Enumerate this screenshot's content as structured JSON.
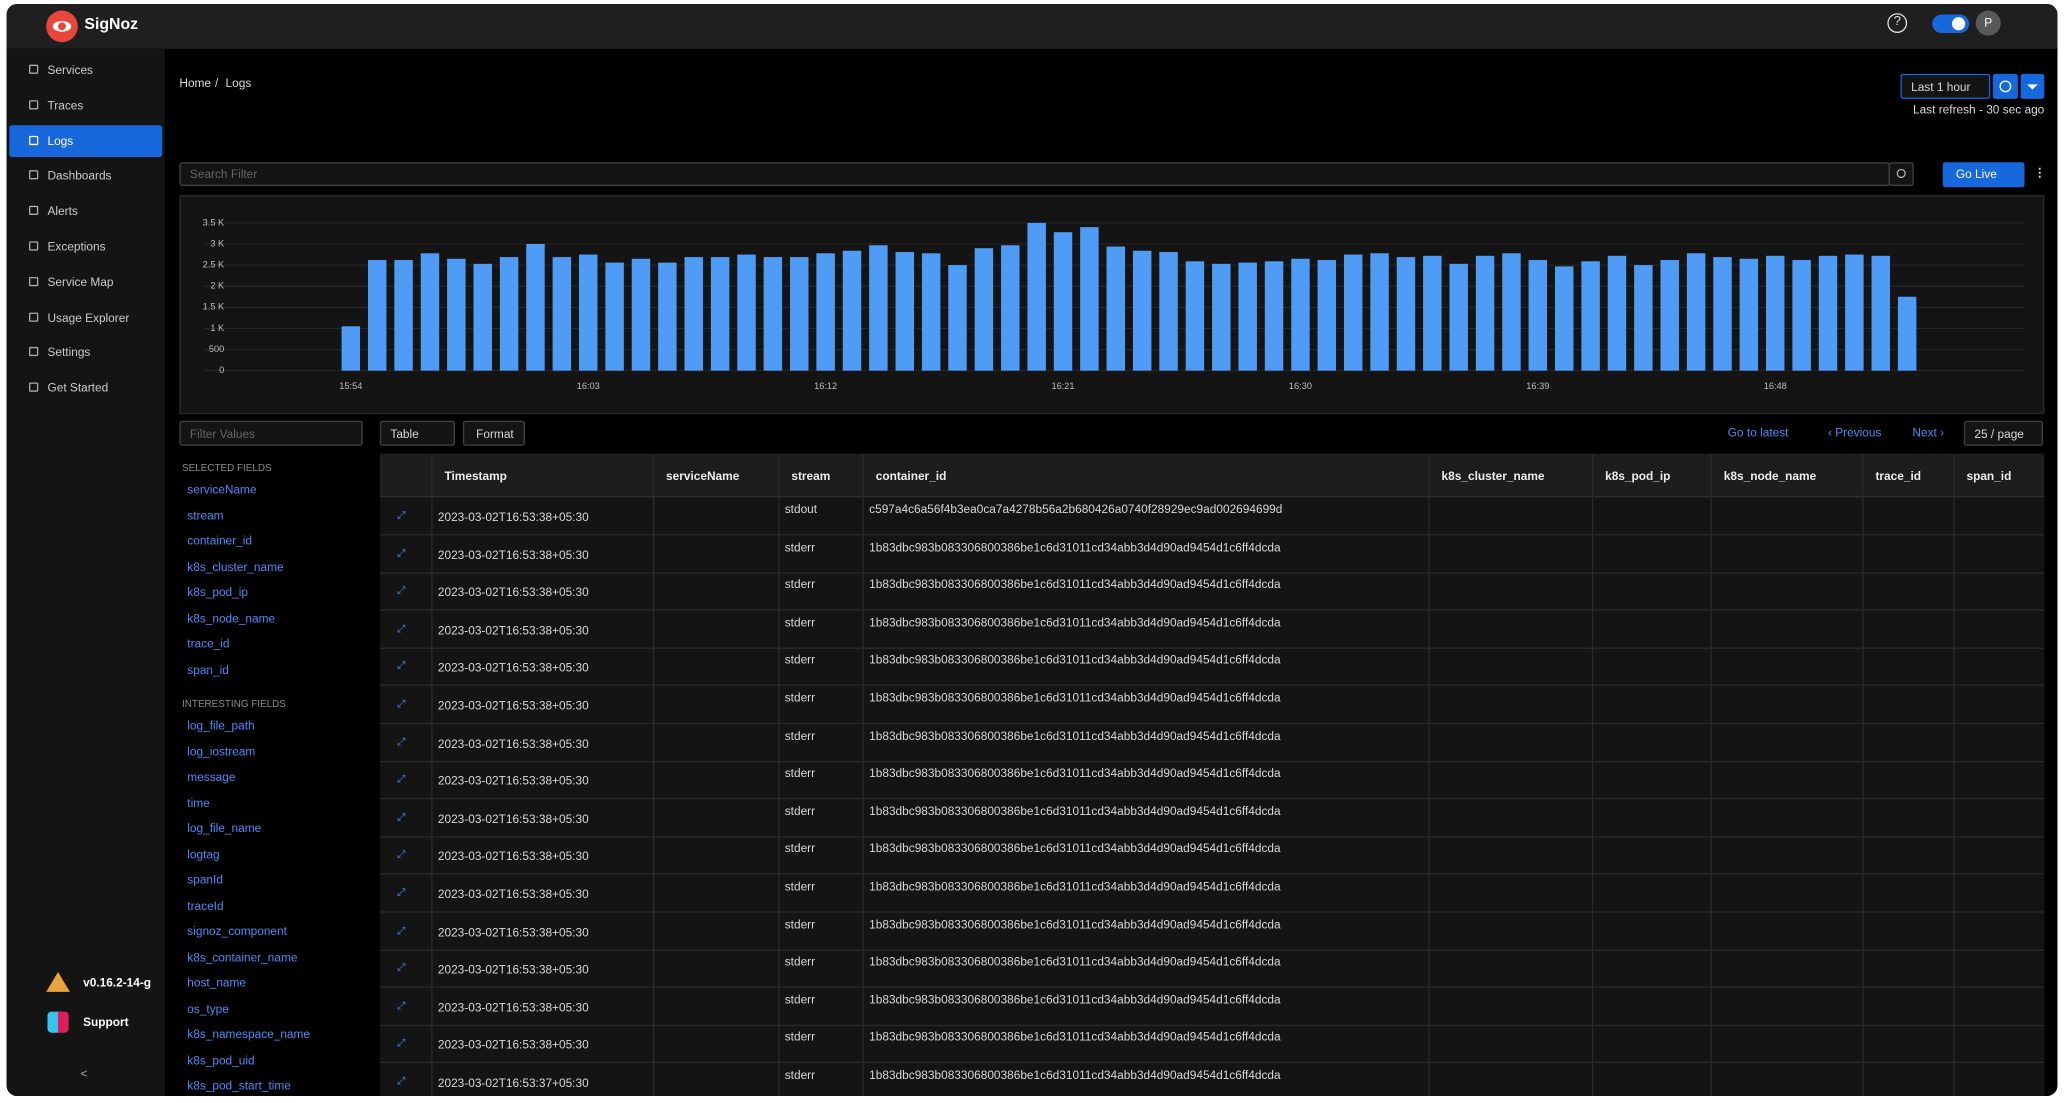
{
  "header": {
    "brand": "SigNoz",
    "avatar": "P"
  },
  "nav": {
    "items": [
      "Services",
      "Traces",
      "Logs",
      "Dashboards",
      "Alerts",
      "Exceptions",
      "Service Map",
      "Usage Explorer",
      "Settings",
      "Get Started"
    ],
    "version": "v0.16.2-14-g",
    "support": "Support"
  },
  "breadcrumb": {
    "items": [
      "Home",
      "Logs"
    ],
    "separator": "/"
  },
  "time": {
    "range": "Last 1 hour",
    "refresh": "Last refresh - 30 sec ago"
  },
  "search": {
    "placeholder": "Search Filter",
    "go_live": "Go Live"
  },
  "histogram": {
    "type": "bar",
    "categories": [
      "15:54",
      null,
      null,
      null,
      null,
      null,
      null,
      null,
      null,
      "16:03",
      null,
      null,
      null,
      null,
      null,
      null,
      null,
      null,
      "16:12",
      null,
      null,
      null,
      null,
      null,
      null,
      null,
      null,
      "16:21",
      null,
      null,
      null,
      null,
      null,
      null,
      null,
      null,
      "16:30",
      null,
      null,
      null,
      null,
      null,
      null,
      null,
      null,
      "16:39",
      null,
      null,
      null,
      null,
      null,
      null,
      null,
      null,
      "16:48",
      null,
      null,
      null,
      null,
      null
    ],
    "values": [
      1050,
      2620,
      2620,
      2780,
      2650,
      2530,
      2690,
      3000,
      2690,
      2750,
      2560,
      2650,
      2560,
      2690,
      2690,
      2750,
      2690,
      2690,
      2780,
      2840,
      2970,
      2810,
      2780,
      2500,
      2900,
      2970,
      3500,
      3280,
      3400,
      2940,
      2840,
      2810,
      2590,
      2530,
      2560,
      2590,
      2650,
      2620,
      2750,
      2780,
      2690,
      2720,
      2530,
      2720,
      2780,
      2620,
      2470,
      2590,
      2720,
      2500,
      2620,
      2780,
      2690,
      2650,
      2720,
      2620,
      2720,
      2750,
      2720,
      1750
    ],
    "color": "#4e9cf5",
    "ylim": [
      0,
      3500
    ],
    "yticks": [
      0,
      500,
      {
        "value": 1000,
        "label": "1 K"
      },
      {
        "value": 1500,
        "label": "1.5 K"
      },
      {
        "value": 2000,
        "label": "2 K"
      },
      {
        "value": 2500,
        "label": "2.5 K"
      },
      {
        "value": 3000,
        "label": "3 K"
      },
      {
        "value": 3500,
        "label": "3.5 K"
      }
    ],
    "grid": true
  },
  "filter": {
    "placeholder": "Filter Values",
    "selected_title": "SELECTED FIELDS",
    "selected": [
      "serviceName",
      "stream",
      "container_id",
      "k8s_cluster_name",
      "k8s_pod_ip",
      "k8s_node_name",
      "trace_id",
      "span_id"
    ],
    "interesting_title": "INTERESTING FIELDS",
    "interesting": [
      "log_file_path",
      "log_iostream",
      "message",
      "time",
      "log_file_name",
      "logtag",
      "spanId",
      "traceId",
      "signoz_component",
      "k8s_container_name",
      "host_name",
      "os_type",
      "k8s_namespace_name",
      "k8s_pod_uid",
      "k8s_pod_start_time"
    ]
  },
  "toolbar": {
    "view": "Table",
    "format": "Format",
    "go_to_latest": "Go to latest",
    "previous": "Previous",
    "next": "Next",
    "page_size": "25 / page"
  },
  "table": {
    "columns": [
      "Timestamp",
      "serviceName",
      "stream",
      "container_id",
      "k8s_cluster_name",
      "k8s_pod_ip",
      "k8s_node_name",
      "trace_id",
      "span_id"
    ],
    "rows": [
      [
        "2023-03-02T16:53:38+05:30",
        "stdout",
        "c597a4c6a56f4b3ea0ca7a4278b56a2b680426a0740f28929ec9ad002694699d"
      ],
      [
        "2023-03-02T16:53:38+05:30",
        "stderr",
        "1b83dbc983b083306800386be1c6d31011cd34abb3d4d90ad9454d1c6ff4dcda"
      ],
      [
        "2023-03-02T16:53:38+05:30",
        "stderr",
        "1b83dbc983b083306800386be1c6d31011cd34abb3d4d90ad9454d1c6ff4dcda"
      ],
      [
        "2023-03-02T16:53:38+05:30",
        "stderr",
        "1b83dbc983b083306800386be1c6d31011cd34abb3d4d90ad9454d1c6ff4dcda"
      ],
      [
        "2023-03-02T16:53:38+05:30",
        "stderr",
        "1b83dbc983b083306800386be1c6d31011cd34abb3d4d90ad9454d1c6ff4dcda"
      ],
      [
        "2023-03-02T16:53:38+05:30",
        "stderr",
        "1b83dbc983b083306800386be1c6d31011cd34abb3d4d90ad9454d1c6ff4dcda"
      ],
      [
        "2023-03-02T16:53:38+05:30",
        "stderr",
        "1b83dbc983b083306800386be1c6d31011cd34abb3d4d90ad9454d1c6ff4dcda"
      ],
      [
        "2023-03-02T16:53:38+05:30",
        "stderr",
        "1b83dbc983b083306800386be1c6d31011cd34abb3d4d90ad9454d1c6ff4dcda"
      ],
      [
        "2023-03-02T16:53:38+05:30",
        "stderr",
        "1b83dbc983b083306800386be1c6d31011cd34abb3d4d90ad9454d1c6ff4dcda"
      ],
      [
        "2023-03-02T16:53:38+05:30",
        "stderr",
        "1b83dbc983b083306800386be1c6d31011cd34abb3d4d90ad9454d1c6ff4dcda"
      ],
      [
        "2023-03-02T16:53:38+05:30",
        "stderr",
        "1b83dbc983b083306800386be1c6d31011cd34abb3d4d90ad9454d1c6ff4dcda"
      ],
      [
        "2023-03-02T16:53:38+05:30",
        "stderr",
        "1b83dbc983b083306800386be1c6d31011cd34abb3d4d90ad9454d1c6ff4dcda"
      ],
      [
        "2023-03-02T16:53:38+05:30",
        "stderr",
        "1b83dbc983b083306800386be1c6d31011cd34abb3d4d90ad9454d1c6ff4dcda"
      ],
      [
        "2023-03-02T16:53:38+05:30",
        "stderr",
        "1b83dbc983b083306800386be1c6d31011cd34abb3d4d90ad9454d1c6ff4dcda"
      ],
      [
        "2023-03-02T16:53:38+05:30",
        "stderr",
        "1b83dbc983b083306800386be1c6d31011cd34abb3d4d90ad9454d1c6ff4dcda"
      ],
      [
        "2023-03-02T16:53:37+05:30",
        "stderr",
        "1b83dbc983b083306800386be1c6d31011cd34abb3d4d90ad9454d1c6ff4dcda"
      ]
    ]
  }
}
